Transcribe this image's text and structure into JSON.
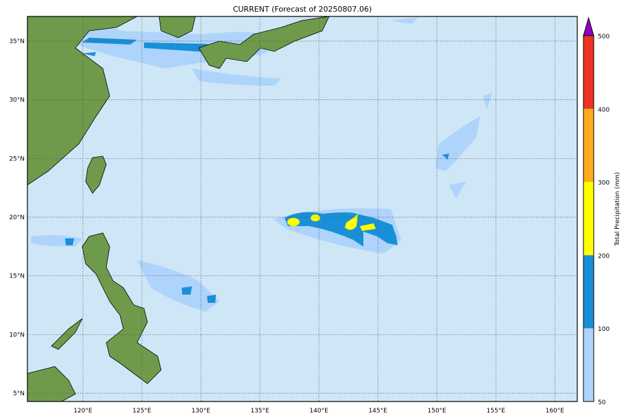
{
  "title": "CURRENT (Forecast of 20250807.06)",
  "map": {
    "extent_lon": [
      115.3,
      161.9
    ],
    "extent_lat": [
      4.3,
      37.1
    ],
    "lon_ticks": [
      120,
      125,
      130,
      135,
      140,
      145,
      150,
      155,
      160
    ],
    "lon_labels": [
      "120°E",
      "125°E",
      "130°E",
      "135°E",
      "140°E",
      "145°E",
      "150°E",
      "155°E",
      "160°E"
    ],
    "lat_ticks": [
      5,
      10,
      15,
      20,
      25,
      30,
      35
    ],
    "lat_labels": [
      "5°N",
      "10°N",
      "15°N",
      "20°N",
      "25°N",
      "30°N",
      "35°N"
    ],
    "ocean_color": "#cfe6f7",
    "gridlines": "dotted"
  },
  "colorbar": {
    "label": "Total Precipitation (mm)",
    "tick_labels": [
      "50",
      "100",
      "200",
      "300",
      "400",
      "500"
    ],
    "levels": [
      {
        "from": 50,
        "to": 100,
        "color": "#aed4fb"
      },
      {
        "from": 100,
        "to": 200,
        "color": "#1890d8"
      },
      {
        "from": 200,
        "to": 300,
        "color": "#ffff00"
      },
      {
        "from": 300,
        "to": 400,
        "color": "#fbac1d"
      },
      {
        "from": 400,
        "to": 500,
        "color": "#ee3322"
      }
    ],
    "extend_color": "#9000c8"
  }
}
